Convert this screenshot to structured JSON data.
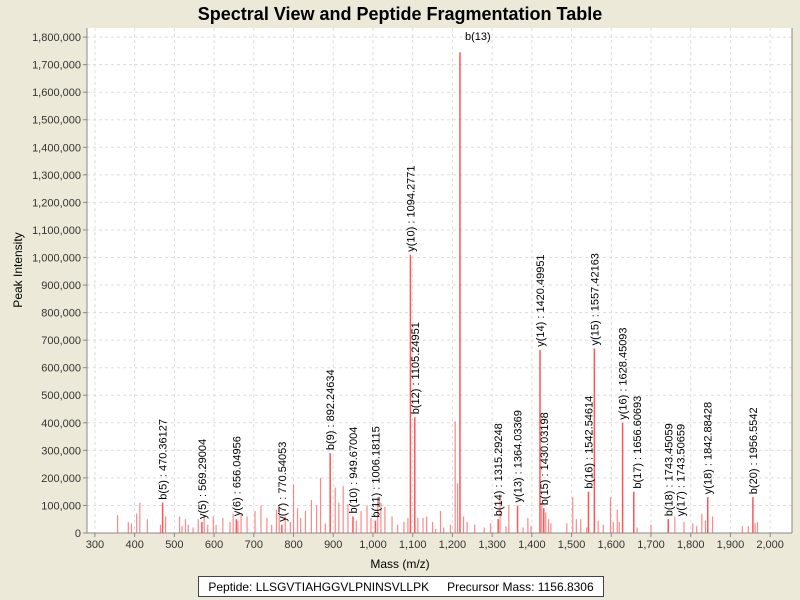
{
  "chart_data": {
    "type": "bar",
    "title": "Spectral View and Peptide Fragmentation Table",
    "xlabel": "Mass (m/z)",
    "ylabel": "Peak Intensity",
    "xlim": [
      280,
      2055
    ],
    "ylim": [
      0,
      1833000
    ],
    "xticks": [
      300,
      400,
      500,
      600,
      700,
      800,
      900,
      1000,
      1100,
      1200,
      1300,
      1400,
      1500,
      1600,
      1700,
      1800,
      1900,
      2000
    ],
    "xtick_labels": [
      "300",
      "400",
      "500",
      "600",
      "700",
      "800",
      "900",
      "1,000",
      "1,100",
      "1,200",
      "1,300",
      "1,400",
      "1,500",
      "1,600",
      "1,700",
      "1,800",
      "1,900",
      "2,000"
    ],
    "yticks": [
      0,
      100000,
      200000,
      300000,
      400000,
      500000,
      600000,
      700000,
      800000,
      900000,
      1000000,
      1100000,
      1200000,
      1300000,
      1400000,
      1500000,
      1600000,
      1700000,
      1800000
    ],
    "ytick_labels": [
      "0",
      "100,000",
      "200,000",
      "300,000",
      "400,000",
      "500,000",
      "600,000",
      "700,000",
      "800,000",
      "900,000",
      "1,000,000",
      "1,100,000",
      "1,200,000",
      "1,300,000",
      "1,400,000",
      "1,500,000",
      "1,600,000",
      "1,700,000",
      "1,800,000"
    ],
    "grid": true,
    "color": "#ff5555",
    "labeled_peaks": [
      {
        "mz": 470.36,
        "intensity": 110000,
        "label": "b(5) : 470.36127"
      },
      {
        "mz": 569.29,
        "intensity": 40000,
        "label": "y(5) : 569.29004"
      },
      {
        "mz": 656.05,
        "intensity": 50000,
        "label": "y(6) : 656.04956"
      },
      {
        "mz": 770.54,
        "intensity": 30000,
        "label": "y(7) : 770.54053"
      },
      {
        "mz": 892.25,
        "intensity": 290000,
        "label": "b(9) : 892.24634"
      },
      {
        "mz": 949.67,
        "intensity": 60000,
        "label": "b(10) : 949.67004"
      },
      {
        "mz": 1006.18,
        "intensity": 45000,
        "label": "b(11) : 1006.18115"
      },
      {
        "mz": 1094.28,
        "intensity": 1010000,
        "label": "y(10) : 1094.2771"
      },
      {
        "mz": 1105.25,
        "intensity": 420000,
        "label": "b(12) : 1105.24951"
      },
      {
        "mz": 1219.0,
        "intensity": 1745000,
        "label": "b(13)"
      },
      {
        "mz": 1315.29,
        "intensity": 50000,
        "label": "b(14) : 1315.29248"
      },
      {
        "mz": 1364.03,
        "intensity": 100000,
        "label": "y(13) : 1364.03369"
      },
      {
        "mz": 1420.5,
        "intensity": 665000,
        "label": "y(14) : 1420.49951"
      },
      {
        "mz": 1430.03,
        "intensity": 90000,
        "label": "b(15) : 1430.03198"
      },
      {
        "mz": 1542.55,
        "intensity": 150000,
        "label": "b(16) : 1542.54614"
      },
      {
        "mz": 1557.42,
        "intensity": 670000,
        "label": "y(15) : 1557.42163"
      },
      {
        "mz": 1628.45,
        "intensity": 400000,
        "label": "y(16) : 1628.45093"
      },
      {
        "mz": 1656.61,
        "intensity": 150000,
        "label": "b(17) : 1656.60693"
      },
      {
        "mz": 1743.45,
        "intensity": 50000,
        "label": "b(18) : 1743.45059"
      },
      {
        "mz": 1743.5,
        "intensity": 50000,
        "label": "y(17) : 1743.50659"
      },
      {
        "mz": 1842.88,
        "intensity": 130000,
        "label": "y(18) : 1842.88428"
      },
      {
        "mz": 1956.55,
        "intensity": 130000,
        "label": "b(20) : 1956.5542"
      }
    ],
    "other_peaks": [
      [
        357,
        65000
      ],
      [
        384,
        40000
      ],
      [
        392,
        35000
      ],
      [
        405,
        70000
      ],
      [
        413,
        110000
      ],
      [
        432,
        50000
      ],
      [
        465,
        30000
      ],
      [
        478,
        60000
      ],
      [
        513,
        60000
      ],
      [
        519,
        25000
      ],
      [
        528,
        50000
      ],
      [
        535,
        30000
      ],
      [
        547,
        20000
      ],
      [
        560,
        50000
      ],
      [
        575,
        60000
      ],
      [
        584,
        30000
      ],
      [
        598,
        60000
      ],
      [
        605,
        30000
      ],
      [
        622,
        55000
      ],
      [
        640,
        40000
      ],
      [
        648,
        70000
      ],
      [
        660,
        45000
      ],
      [
        668,
        70000
      ],
      [
        683,
        60000
      ],
      [
        703,
        80000
      ],
      [
        718,
        100000
      ],
      [
        733,
        55000
      ],
      [
        745,
        30000
      ],
      [
        757,
        85000
      ],
      [
        764,
        100000
      ],
      [
        779,
        60000
      ],
      [
        792,
        40000
      ],
      [
        800,
        175000
      ],
      [
        810,
        90000
      ],
      [
        818,
        55000
      ],
      [
        830,
        80000
      ],
      [
        845,
        120000
      ],
      [
        858,
        100000
      ],
      [
        868,
        200000
      ],
      [
        880,
        35000
      ],
      [
        905,
        165000
      ],
      [
        914,
        110000
      ],
      [
        925,
        170000
      ],
      [
        937,
        105000
      ],
      [
        958,
        45000
      ],
      [
        970,
        80000
      ],
      [
        985,
        100000
      ],
      [
        995,
        55000
      ],
      [
        1012,
        130000
      ],
      [
        1020,
        110000
      ],
      [
        1030,
        95000
      ],
      [
        1048,
        60000
      ],
      [
        1062,
        30000
      ],
      [
        1078,
        40000
      ],
      [
        1088,
        55000
      ],
      [
        1113,
        55000
      ],
      [
        1126,
        55000
      ],
      [
        1135,
        60000
      ],
      [
        1150,
        40000
      ],
      [
        1158,
        15000
      ],
      [
        1170,
        80000
      ],
      [
        1178,
        20000
      ],
      [
        1195,
        30000
      ],
      [
        1207,
        405000
      ],
      [
        1213,
        180000
      ],
      [
        1228,
        60000
      ],
      [
        1237,
        40000
      ],
      [
        1256,
        30000
      ],
      [
        1280,
        20000
      ],
      [
        1296,
        35000
      ],
      [
        1320,
        135000
      ],
      [
        1335,
        25000
      ],
      [
        1342,
        100000
      ],
      [
        1378,
        20000
      ],
      [
        1390,
        55000
      ],
      [
        1398,
        25000
      ],
      [
        1425,
        110000
      ],
      [
        1435,
        75000
      ],
      [
        1442,
        50000
      ],
      [
        1448,
        35000
      ],
      [
        1488,
        35000
      ],
      [
        1503,
        130000
      ],
      [
        1512,
        50000
      ],
      [
        1523,
        50000
      ],
      [
        1538,
        20000
      ],
      [
        1567,
        45000
      ],
      [
        1580,
        30000
      ],
      [
        1598,
        130000
      ],
      [
        1605,
        40000
      ],
      [
        1615,
        85000
      ],
      [
        1620,
        40000
      ],
      [
        1665,
        20000
      ],
      [
        1700,
        30000
      ],
      [
        1760,
        60000
      ],
      [
        1783,
        40000
      ],
      [
        1805,
        35000
      ],
      [
        1815,
        25000
      ],
      [
        1828,
        70000
      ],
      [
        1837,
        45000
      ],
      [
        1855,
        60000
      ],
      [
        1930,
        25000
      ],
      [
        1945,
        25000
      ],
      [
        1962,
        35000
      ],
      [
        1968,
        40000
      ]
    ]
  },
  "legend": {
    "peptide": "Peptide: LLSGVTIAHGGVLPNINSVLLPK",
    "precursor": "Precursor Mass: 1156.8306"
  }
}
